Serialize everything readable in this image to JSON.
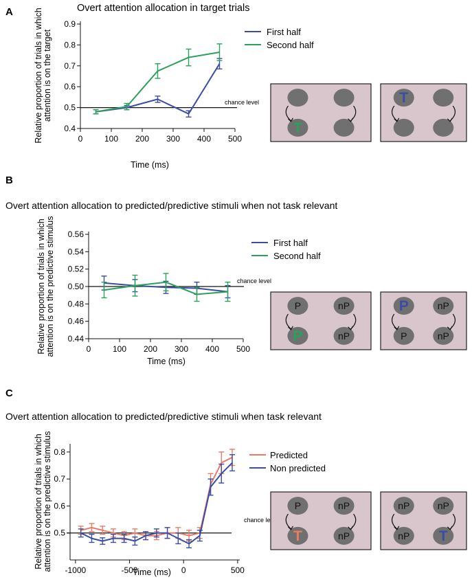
{
  "colors": {
    "blue": "#3a4da3",
    "green": "#2aa05a",
    "red": "#e87b66",
    "box_fill": "#d9c5cc",
    "disc_fill": "#707070",
    "axis": "#111111"
  },
  "panels": [
    {
      "letter": "A",
      "title": "Overt attention allocation in target trials",
      "legend_text": [
        "First half",
        "Second half"
      ],
      "schematic": [
        {
          "cells": [
            "",
            "",
            "T",
            ""
          ],
          "highlight": 2,
          "highlight_color": "green"
        },
        {
          "cells": [
            "T",
            "",
            "",
            ""
          ],
          "highlight": 0,
          "highlight_color": "blue"
        }
      ]
    },
    {
      "letter": "B",
      "title": "Overt attention allocation to predicted/predictive stimuli when not task relevant",
      "legend_text": [
        "First half",
        "Second half"
      ],
      "schematic": [
        {
          "cells": [
            "P",
            "nP",
            "P",
            "nP"
          ],
          "highlight": 2,
          "highlight_color": "green"
        },
        {
          "cells": [
            "P",
            "nP",
            "P",
            "nP"
          ],
          "highlight": 0,
          "highlight_color": "blue"
        }
      ]
    },
    {
      "letter": "C",
      "title": "Overt attention allocation to predicted/predictive stimuli when task relevant",
      "legend_text": [
        "Predicted",
        "Non predicted"
      ],
      "schematic": [
        {
          "cells": [
            "P",
            "nP",
            "T",
            "nP"
          ],
          "highlight": 2,
          "highlight_color": "red"
        },
        {
          "cells": [
            "nP",
            "nP",
            "nP",
            "T"
          ],
          "highlight": 3,
          "highlight_color": "blue"
        }
      ]
    }
  ],
  "chart_data": [
    {
      "type": "line",
      "title": "Overt attention allocation in target trials",
      "xlabel": "Time (ms)",
      "ylabel": [
        "Relative proportion of trials in which",
        "attention is on the target"
      ],
      "xlim": [
        0,
        500
      ],
      "ylim": [
        0.4,
        0.9
      ],
      "xticks": [
        0,
        100,
        200,
        300,
        400,
        500
      ],
      "yticks": [
        0.4,
        0.5,
        0.6,
        0.7,
        0.8,
        0.9
      ],
      "ytick_decimals": 1,
      "reference_line": {
        "y": 0.5,
        "label": "chance level"
      },
      "x": [
        50,
        150,
        250,
        350,
        450
      ],
      "series": [
        {
          "name": "First half",
          "color": "blue",
          "values": [
            0.48,
            0.5,
            0.54,
            0.47,
            0.71
          ],
          "errors": [
            0.01,
            0.01,
            0.015,
            0.015,
            0.025
          ]
        },
        {
          "name": "Second half",
          "color": "green",
          "values": [
            0.48,
            0.505,
            0.675,
            0.74,
            0.765
          ],
          "errors": [
            0.01,
            0.015,
            0.035,
            0.04,
            0.04
          ]
        }
      ]
    },
    {
      "type": "line",
      "title": "Overt attention allocation to predicted/predictive stimuli when not task relevant",
      "xlabel": "Time (ms)",
      "ylabel": [
        "Relative proportion of trials in which",
        "attention is on the predictive stimulus"
      ],
      "xlim": [
        0,
        500
      ],
      "ylim": [
        0.44,
        0.56
      ],
      "xticks": [
        0,
        100,
        200,
        300,
        400,
        500
      ],
      "yticks": [
        0.44,
        0.46,
        0.48,
        0.5,
        0.52,
        0.54,
        0.56
      ],
      "ytick_decimals": 2,
      "reference_line": {
        "y": 0.5,
        "label": "chance level"
      },
      "x": [
        50,
        150,
        250,
        350,
        450
      ],
      "series": [
        {
          "name": "First half",
          "color": "blue",
          "values": [
            0.504,
            0.501,
            0.499,
            0.498,
            0.494
          ],
          "errors": [
            0.008,
            0.007,
            0.007,
            0.007,
            0.007
          ]
        },
        {
          "name": "Second half",
          "color": "green",
          "values": [
            0.496,
            0.501,
            0.505,
            0.491,
            0.494
          ],
          "errors": [
            0.009,
            0.012,
            0.01,
            0.008,
            0.011
          ]
        }
      ]
    },
    {
      "type": "line",
      "title": "Overt attention allocation to predicted/predictive stimuli when task relevant",
      "xlabel": "Time (ms)",
      "ylabel": [
        "Relative proportion of trials in which",
        "attention is on the predictive stimulus"
      ],
      "xlim": [
        -1050,
        520
      ],
      "ylim": [
        0.4,
        0.82
      ],
      "xticks": [
        -1000,
        -500,
        0,
        500
      ],
      "yticks": [
        0.5,
        0.6,
        0.7,
        0.8
      ],
      "ytick_decimals": 1,
      "reference_line": {
        "y": 0.5,
        "label": "chance level"
      },
      "x": [
        -950,
        -850,
        -750,
        -650,
        -550,
        -450,
        -350,
        -250,
        -150,
        -50,
        50,
        150,
        250,
        350,
        450
      ],
      "series": [
        {
          "name": "Predicted",
          "color": "red",
          "values": [
            0.51,
            0.52,
            0.51,
            0.5,
            0.49,
            0.5,
            0.49,
            0.49,
            0.5,
            0.5,
            0.49,
            0.5,
            0.68,
            0.76,
            0.78
          ],
          "errors": [
            0.015,
            0.015,
            0.015,
            0.015,
            0.015,
            0.015,
            0.015,
            0.015,
            0.02,
            0.02,
            0.02,
            0.02,
            0.04,
            0.04,
            0.03
          ]
        },
        {
          "name": "Non predicted",
          "color": "blue",
          "values": [
            0.5,
            0.48,
            0.47,
            0.48,
            0.48,
            0.47,
            0.49,
            0.5,
            0.5,
            0.48,
            0.46,
            0.49,
            0.67,
            0.72,
            0.76
          ],
          "errors": [
            0.015,
            0.015,
            0.012,
            0.015,
            0.015,
            0.015,
            0.015,
            0.015,
            0.02,
            0.02,
            0.015,
            0.02,
            0.03,
            0.035,
            0.03
          ]
        }
      ]
    }
  ]
}
